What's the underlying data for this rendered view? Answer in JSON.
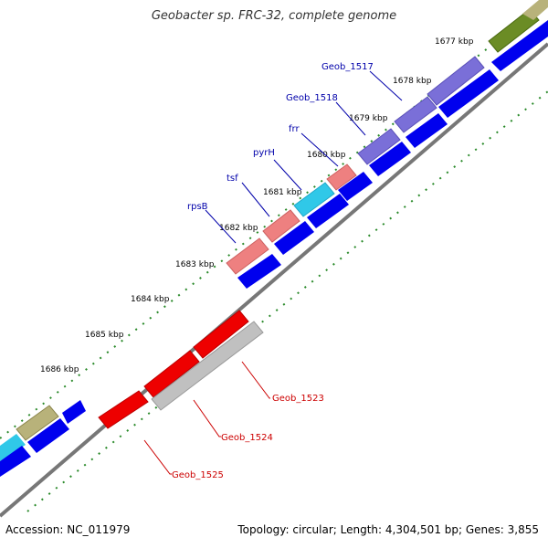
{
  "title": "Geobacter sp. FRC-32, complete genome",
  "footer": {
    "accession": "Accession: NC_011979",
    "summary": "Topology: circular; Length: 4,304,501 bp; Genes: 3,855"
  },
  "ticks": [
    "1677 kbp",
    "1678 kbp",
    "1679 kbp",
    "1680 kbp",
    "1681 kbp",
    "1682 kbp",
    "1683 kbp",
    "1684 kbp",
    "1685 kbp",
    "1686 kbp"
  ],
  "gene_labels": [
    {
      "text": "Geob_1517",
      "color": "#0000aa"
    },
    {
      "text": "Geob_1518",
      "color": "#0000aa"
    },
    {
      "text": "frr",
      "color": "#0000aa"
    },
    {
      "text": "pyrH",
      "color": "#0000aa"
    },
    {
      "text": "tsf",
      "color": "#0000aa"
    },
    {
      "text": "rpsB",
      "color": "#0000aa"
    },
    {
      "text": "Geob_1523",
      "color": "#cc0000"
    },
    {
      "text": "Geob_1524",
      "color": "#cc0000"
    },
    {
      "text": "Geob_1525",
      "color": "#cc0000"
    }
  ],
  "colors": {
    "blue_cds": "#0000ee",
    "red_cds": "#ee0000",
    "pink_rna": "#ee8080",
    "cyan": "#30c8e8",
    "purple": "#7a6fd8",
    "olive": "#6b8c25",
    "khaki": "#b8b27a",
    "grey": "#c0c0c0",
    "backbone": "#777777",
    "tick_green": "#2a8a2a"
  }
}
